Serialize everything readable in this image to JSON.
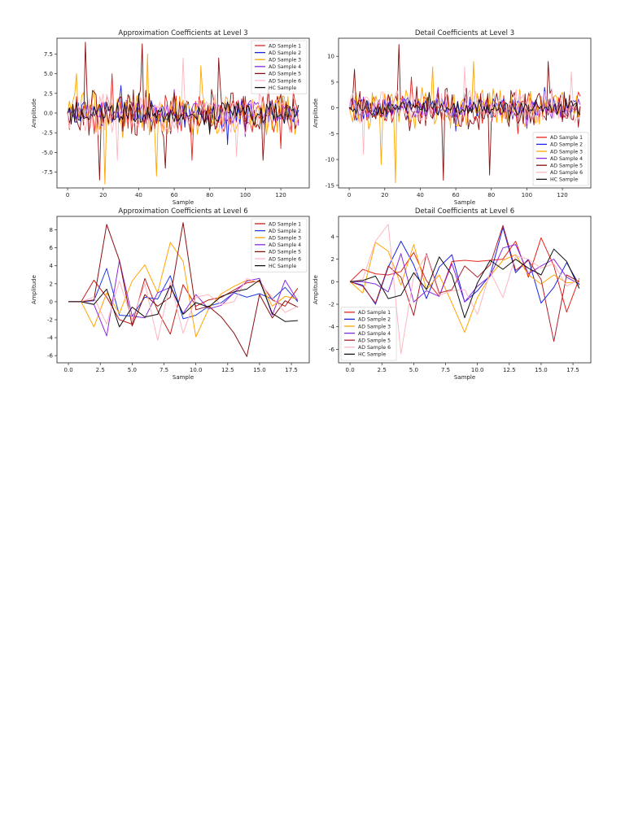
{
  "chart_data": [
    {
      "type": "line",
      "title": "Approximation Coefficients at Level 3",
      "xlabel": "Sample",
      "ylabel": "Amplitude",
      "xlim": [
        -6,
        136
      ],
      "ylim": [
        -9.5,
        9.5
      ],
      "xticks": [
        0,
        20,
        40,
        60,
        80,
        100,
        120
      ],
      "xtick_labels": [
        "0",
        "20",
        "40",
        "60",
        "80",
        "100",
        "120"
      ],
      "yticks": [
        -7.5,
        -5.0,
        -2.5,
        0.0,
        2.5,
        5.0,
        7.5
      ],
      "ytick_labels": [
        "-7.5",
        "-5.0",
        "-2.5",
        "0.0",
        "2.5",
        "5.0",
        "7.5"
      ],
      "legend_position": "top-right",
      "legend": [
        "AD Sample 1",
        "AD Sample 2",
        "AD Sample 3",
        "AD Sample 4",
        "AD Sample 5",
        "AD Sample 6",
        "HC Sample"
      ],
      "n_points": 131,
      "dense_seeds": [
        11,
        23,
        37,
        41,
        53,
        67,
        79
      ],
      "series": [
        {
          "name": "AD Sample 1",
          "color": "#e8221f",
          "spread": 2.2,
          "peaks": [
            [
              25,
              5.0
            ],
            [
              70,
              -6.0
            ],
            [
              120,
              -4.5
            ]
          ]
        },
        {
          "name": "AD Sample 2",
          "color": "#1a22e8",
          "spread": 1.6,
          "peaks": [
            [
              30,
              3.5
            ],
            [
              90,
              -4.0
            ]
          ]
        },
        {
          "name": "AD Sample 3",
          "color": "#ffa500",
          "spread": 2.6,
          "peaks": [
            [
              5,
              5.0
            ],
            [
              21,
              -9.0
            ],
            [
              45,
              7.5
            ],
            [
              50,
              -8.0
            ],
            [
              75,
              6.0
            ]
          ]
        },
        {
          "name": "AD Sample 4",
          "color": "#8a2be2",
          "spread": 1.4,
          "peaks": [
            [
              60,
              3.0
            ],
            [
              100,
              -3.0
            ]
          ]
        },
        {
          "name": "AD Sample 5",
          "color": "#8b0f0f",
          "spread": 2.8,
          "peaks": [
            [
              10,
              9.0
            ],
            [
              18,
              -8.5
            ],
            [
              42,
              8.8
            ],
            [
              55,
              -7.0
            ],
            [
              85,
              7.0
            ],
            [
              110,
              -6.0
            ]
          ]
        },
        {
          "name": "AD Sample 6",
          "color": "#ffb6c1",
          "spread": 2.2,
          "peaks": [
            [
              28,
              -6.0
            ],
            [
              65,
              7.0
            ],
            [
              95,
              -5.5
            ]
          ]
        },
        {
          "name": "HC Sample",
          "color": "#111111",
          "spread": 1.3,
          "peaks": [
            [
              40,
              2.5
            ],
            [
              80,
              -2.5
            ]
          ]
        }
      ]
    },
    {
      "type": "line",
      "title": "Detail Coefficients at Level 3",
      "xlabel": "Sample",
      "ylabel": "Amplitude",
      "xlim": [
        -6,
        136
      ],
      "ylim": [
        -15.5,
        13.5
      ],
      "xticks": [
        0,
        20,
        40,
        60,
        80,
        100,
        120
      ],
      "xtick_labels": [
        "0",
        "20",
        "40",
        "60",
        "80",
        "100",
        "120"
      ],
      "yticks": [
        -15,
        -10,
        -5,
        0,
        5,
        10
      ],
      "ytick_labels": [
        "-15",
        "-10",
        "-5",
        "0",
        "5",
        "10"
      ],
      "legend_position": "bottom-right",
      "legend": [
        "AD Sample 1",
        "AD Sample 2",
        "AD Sample 3",
        "AD Sample 4",
        "AD Sample 5",
        "AD Sample 6",
        "HC Sample"
      ],
      "n_points": 131,
      "dense_seeds": [
        13,
        29,
        31,
        43,
        59,
        61,
        83
      ],
      "series": [
        {
          "name": "AD Sample 1",
          "color": "#e8221f",
          "spread": 2.5,
          "peaks": [
            [
              35,
              6.0
            ],
            [
              95,
              -5.0
            ]
          ]
        },
        {
          "name": "AD Sample 2",
          "color": "#1a22e8",
          "spread": 2.0,
          "peaks": [
            [
              60,
              -4.5
            ],
            [
              110,
              4.0
            ]
          ]
        },
        {
          "name": "AD Sample 3",
          "color": "#ffa500",
          "spread": 3.5,
          "peaks": [
            [
              18,
              -11.0
            ],
            [
              26,
              -14.5
            ],
            [
              47,
              8.0
            ],
            [
              70,
              9.0
            ]
          ]
        },
        {
          "name": "AD Sample 4",
          "color": "#8a2be2",
          "spread": 1.8,
          "peaks": [
            [
              50,
              4.0
            ],
            [
              100,
              -4.0
            ]
          ]
        },
        {
          "name": "AD Sample 5",
          "color": "#8b0f0f",
          "spread": 3.6,
          "peaks": [
            [
              3,
              7.5
            ],
            [
              28,
              12.3
            ],
            [
              53,
              -14.0
            ],
            [
              79,
              -13.0
            ],
            [
              112,
              9.0
            ]
          ]
        },
        {
          "name": "AD Sample 6",
          "color": "#ffb6c1",
          "spread": 3.0,
          "peaks": [
            [
              8,
              -9.0
            ],
            [
              65,
              8.0
            ],
            [
              125,
              7.0
            ]
          ]
        },
        {
          "name": "HC Sample",
          "color": "#111111",
          "spread": 1.4,
          "peaks": [
            [
              45,
              3.0
            ],
            [
              90,
              -2.5
            ]
          ]
        }
      ]
    },
    {
      "type": "line",
      "title": "Approximation Coefficients at Level 6",
      "xlabel": "Sample",
      "ylabel": "Amplitude",
      "xlim": [
        -0.9,
        18.9
      ],
      "ylim": [
        -6.8,
        9.5
      ],
      "xticks": [
        0.0,
        2.5,
        5.0,
        7.5,
        10.0,
        12.5,
        15.0,
        17.5
      ],
      "xtick_labels": [
        "0.0",
        "2.5",
        "5.0",
        "7.5",
        "10.0",
        "12.5",
        "15.0",
        "17.5"
      ],
      "yticks": [
        -6,
        -4,
        -2,
        0,
        2,
        4,
        6,
        8
      ],
      "ytick_labels": [
        "-6",
        "-4",
        "-2",
        "0",
        "2",
        "4",
        "6",
        "8"
      ],
      "legend_position": "top-right",
      "legend": [
        "AD Sample 1",
        "AD Sample 2",
        "AD Sample 3",
        "AD Sample 4",
        "AD Sample 5",
        "AD Sample 6",
        "HC Sample"
      ],
      "x": [
        0,
        1,
        2,
        3,
        4,
        5,
        6,
        7,
        8,
        9,
        10,
        11,
        12,
        13,
        14,
        15,
        16,
        17,
        18
      ],
      "series": [
        {
          "name": "AD Sample 1",
          "color": "#c41d1d",
          "values": [
            0,
            0,
            2.4,
            0.5,
            -2.0,
            -2.5,
            2.6,
            -1.0,
            -3.6,
            1.9,
            -0.5,
            0.2,
            0.5,
            1.3,
            2.1,
            2.3,
            0.2,
            -0.5,
            1.5
          ]
        },
        {
          "name": "AD Sample 2",
          "color": "#1f3de0",
          "values": [
            0,
            0,
            0.1,
            3.7,
            -1.5,
            -1.6,
            0.5,
            0.3,
            2.9,
            -1.9,
            -1.5,
            -0.5,
            -0.1,
            1.0,
            0.5,
            0.9,
            0.3,
            1.6,
            0.0
          ]
        },
        {
          "name": "AD Sample 3",
          "color": "#ffa500",
          "values": [
            0,
            0,
            -2.8,
            1.0,
            -1.3,
            2.3,
            4.1,
            1.0,
            6.6,
            4.5,
            -3.9,
            -0.8,
            0.9,
            1.7,
            2.4,
            2.2,
            -0.5,
            0.6,
            0.3
          ]
        },
        {
          "name": "AD Sample 4",
          "color": "#8a2be2",
          "values": [
            0,
            0,
            -0.3,
            -3.8,
            4.6,
            -1.6,
            -1.8,
            1.0,
            1.6,
            -1.3,
            0.8,
            -0.8,
            -0.4,
            1.0,
            2.3,
            2.6,
            -1.5,
            2.4,
            0.1
          ]
        },
        {
          "name": "AD Sample 5",
          "color": "#8b0f0f",
          "values": [
            0,
            0,
            0.2,
            8.6,
            4.6,
            -2.7,
            0.8,
            -0.5,
            0.5,
            8.8,
            -0.9,
            -0.5,
            -1.7,
            -3.5,
            -6.1,
            0.8,
            -1.8,
            0.1,
            -0.6
          ]
        },
        {
          "name": "AD Sample 6",
          "color": "#ffb6c1",
          "values": [
            0,
            0,
            0.5,
            -2.5,
            2.3,
            -2.0,
            2.0,
            -4.3,
            2.2,
            -3.5,
            0.5,
            0.8,
            -0.3,
            0.0,
            2.6,
            2.1,
            0.5,
            -1.2,
            -0.5
          ]
        },
        {
          "name": "HC Sample",
          "color": "#111111",
          "values": [
            0,
            0,
            -0.3,
            1.4,
            -2.8,
            -0.6,
            -1.7,
            -1.4,
            1.8,
            -1.4,
            -0.1,
            -0.6,
            0.6,
            1.1,
            1.4,
            2.4,
            -1.3,
            -2.2,
            -2.1
          ]
        }
      ]
    },
    {
      "type": "line",
      "title": "Detail Coefficients at Level 6",
      "xlabel": "Sample",
      "ylabel": "Amplitude",
      "xlim": [
        -0.9,
        18.9
      ],
      "ylim": [
        -7.2,
        5.8
      ],
      "xticks": [
        0.0,
        2.5,
        5.0,
        7.5,
        10.0,
        12.5,
        15.0,
        17.5
      ],
      "xtick_labels": [
        "0.0",
        "2.5",
        "5.0",
        "7.5",
        "10.0",
        "12.5",
        "15.0",
        "17.5"
      ],
      "yticks": [
        -6,
        -4,
        -2,
        0,
        2,
        4
      ],
      "ytick_labels": [
        "-6",
        "-4",
        "-2",
        "0",
        "2",
        "4"
      ],
      "legend_position": "bottom-left",
      "legend": [
        "AD Sample 1",
        "AD Sample 2",
        "AD Sample 3",
        "AD Sample 4",
        "AD Sample 5",
        "AD Sample 6",
        "HC Sample"
      ],
      "x": [
        0,
        1,
        2,
        3,
        4,
        5,
        6,
        7,
        8,
        9,
        10,
        11,
        12,
        13,
        14,
        15,
        16,
        17,
        18
      ],
      "series": [
        {
          "name": "AD Sample 1",
          "color": "#e8221f",
          "values": [
            0,
            1.1,
            0.7,
            0.6,
            0.9,
            2.6,
            0.1,
            -1.3,
            1.8,
            1.9,
            1.8,
            1.9,
            2.0,
            3.6,
            0.4,
            3.9,
            1.4,
            -2.7,
            0.3
          ]
        },
        {
          "name": "AD Sample 2",
          "color": "#1a22e8",
          "values": [
            0,
            -0.3,
            -2.0,
            1.3,
            3.6,
            1.5,
            -1.5,
            1.3,
            2.4,
            -1.8,
            -0.8,
            0.6,
            4.8,
            0.8,
            2.0,
            -1.9,
            -0.5,
            1.7,
            -0.3
          ]
        },
        {
          "name": "AD Sample 3",
          "color": "#ffa500",
          "values": [
            0,
            -1.0,
            3.5,
            2.7,
            -0.3,
            3.3,
            -0.7,
            0.6,
            -1.9,
            -4.5,
            -1.4,
            0.5,
            1.9,
            2.4,
            0.6,
            -0.2,
            0.6,
            -0.1,
            0.0
          ]
        },
        {
          "name": "AD Sample 4",
          "color": "#8a2be2",
          "values": [
            0,
            0.0,
            -0.2,
            -0.9,
            2.5,
            -1.8,
            -0.8,
            -1.3,
            1.6,
            -1.8,
            -0.4,
            0.5,
            3.0,
            3.3,
            0.7,
            1.4,
            2.0,
            0.4,
            -0.2
          ]
        },
        {
          "name": "AD Sample 5",
          "color": "#b0202a",
          "values": [
            0,
            -0.4,
            -1.9,
            1.4,
            0.4,
            -3.0,
            2.5,
            -1.0,
            -0.7,
            1.4,
            0.4,
            1.5,
            5.0,
            1.0,
            1.9,
            0.2,
            -5.3,
            0.6,
            0.0
          ]
        },
        {
          "name": "AD Sample 6",
          "color": "#ffb6c1",
          "values": [
            0,
            0.2,
            3.6,
            5.1,
            -6.4,
            0.5,
            2.4,
            -1.2,
            -0.8,
            -0.7,
            -2.9,
            0.9,
            -1.4,
            2.3,
            2.0,
            1.2,
            1.6,
            -0.4,
            0.2
          ]
        },
        {
          "name": "HC Sample",
          "color": "#111111",
          "values": [
            0,
            0.1,
            0.5,
            -1.5,
            -1.2,
            0.8,
            -0.7,
            2.2,
            0.6,
            -3.2,
            -0.1,
            1.9,
            1.1,
            2.0,
            1.2,
            0.6,
            2.9,
            1.8,
            -0.6
          ]
        }
      ]
    }
  ]
}
